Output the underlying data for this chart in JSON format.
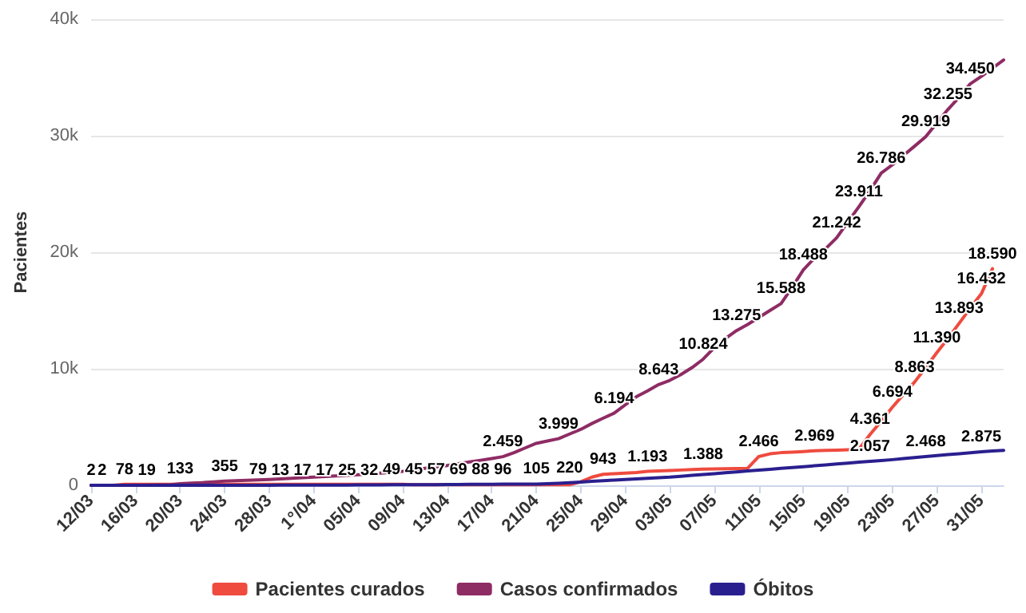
{
  "chart_data": {
    "type": "line",
    "ylabel": "Pacientes",
    "categories": [
      "12/03",
      null,
      null,
      null,
      "16/03",
      null,
      null,
      null,
      "20/03",
      null,
      null,
      null,
      "24/03",
      null,
      null,
      null,
      "28/03",
      null,
      null,
      null,
      "1°/04",
      null,
      null,
      null,
      "05/04",
      null,
      null,
      null,
      "09/04",
      null,
      null,
      null,
      "13/04",
      null,
      null,
      null,
      "17/04",
      null,
      null,
      null,
      "21/04",
      null,
      null,
      null,
      "25/04",
      null,
      null,
      null,
      "29/04",
      null,
      null,
      null,
      "03/05",
      null,
      null,
      null,
      "07/05",
      null,
      null,
      null,
      "11/05",
      null,
      null,
      null,
      "15/05",
      null,
      null,
      null,
      "19/05",
      null,
      null,
      null,
      "23/05",
      null,
      null,
      null,
      "27/05",
      null,
      null,
      null,
      "31/05",
      null,
      null
    ],
    "series": [
      {
        "name": "Pacientes curados",
        "color": "#ef4b3f",
        "values": [
          0,
          0,
          0,
          78,
          78,
          78,
          78,
          78,
          78,
          78,
          78,
          78,
          78,
          78,
          78,
          79,
          79,
          79,
          79,
          79,
          79,
          79,
          79,
          79,
          79,
          79,
          79,
          79,
          79,
          45,
          45,
          45,
          45,
          45,
          45,
          45,
          45,
          45,
          45,
          45,
          45,
          45,
          45,
          45,
          300,
          700,
          943,
          1000,
          1050,
          1100,
          1193,
          1230,
          1270,
          1310,
          1350,
          1388,
          1400,
          1420,
          1440,
          1460,
          2466,
          2700,
          2800,
          2850,
          2900,
          2969,
          3000,
          3020,
          3050,
          3100,
          4361,
          5500,
          6694,
          7800,
          8863,
          10100,
          11390,
          12600,
          13893,
          15200,
          16432,
          18590,
          null
        ],
        "value_labels": [
          null,
          null,
          null,
          "78",
          null,
          null,
          null,
          null,
          null,
          null,
          null,
          null,
          null,
          null,
          null,
          "79",
          null,
          null,
          null,
          null,
          null,
          null,
          null,
          null,
          null,
          null,
          null,
          null,
          null,
          "45",
          null,
          null,
          null,
          null,
          null,
          null,
          null,
          null,
          null,
          null,
          null,
          null,
          null,
          null,
          null,
          null,
          "943",
          null,
          null,
          null,
          "1.193",
          null,
          null,
          null,
          null,
          "1.388",
          null,
          null,
          null,
          null,
          "2.466",
          null,
          null,
          null,
          null,
          "2.969",
          null,
          null,
          null,
          null,
          "4.361",
          null,
          "6.694",
          null,
          "8.863",
          null,
          "11.390",
          null,
          "13.893",
          null,
          "16.432",
          "18.590",
          null
        ]
      },
      {
        "name": "Casos confirmados",
        "color": "#8e2c64",
        "values": [
          2,
          2,
          4,
          7,
          13,
          19,
          30,
          42,
          133,
          180,
          230,
          290,
          355,
          390,
          420,
          460,
          500,
          550,
          600,
          650,
          700,
          750,
          800,
          850,
          900,
          970,
          1050,
          1120,
          1200,
          1320,
          1450,
          1570,
          1700,
          1850,
          2000,
          2150,
          2300,
          2459,
          2800,
          3200,
          3600,
          3800,
          3999,
          4400,
          4800,
          5300,
          5750,
          6194,
          6900,
          7600,
          8100,
          8643,
          9000,
          9500,
          10100,
          10824,
          11800,
          12600,
          13275,
          13800,
          14400,
          15000,
          15588,
          17000,
          18488,
          19500,
          20300,
          21242,
          22600,
          23911,
          25300,
          26786,
          27500,
          28300,
          29100,
          29919,
          31100,
          32255,
          33300,
          34450,
          35100,
          35800,
          36500
        ],
        "value_labels": [
          "2",
          "2",
          null,
          null,
          null,
          "19",
          null,
          null,
          "133",
          null,
          null,
          null,
          "355",
          null,
          null,
          null,
          null,
          null,
          null,
          null,
          null,
          null,
          null,
          null,
          null,
          null,
          null,
          null,
          null,
          null,
          null,
          null,
          null,
          null,
          null,
          null,
          null,
          "2.459",
          null,
          null,
          null,
          null,
          "3.999",
          null,
          null,
          null,
          null,
          "6.194",
          null,
          null,
          null,
          "8.643",
          null,
          null,
          null,
          "10.824",
          null,
          null,
          "13.275",
          null,
          null,
          null,
          "15.588",
          null,
          "18.488",
          null,
          null,
          "21.242",
          null,
          "23.911",
          null,
          "26.786",
          null,
          null,
          null,
          "29.919",
          null,
          "32.255",
          null,
          "34.450",
          null,
          null,
          null
        ]
      },
      {
        "name": "Óbitos",
        "color": "#2a1f8f",
        "values": [
          0,
          0,
          0,
          0,
          0,
          0,
          0,
          0,
          0,
          0,
          0,
          0,
          0,
          0,
          0,
          0,
          0,
          13,
          15,
          17,
          17,
          17,
          21,
          25,
          28,
          32,
          40,
          49,
          53,
          55,
          56,
          57,
          63,
          69,
          78,
          88,
          92,
          96,
          98,
          100,
          105,
          130,
          175,
          220,
          280,
          340,
          400,
          450,
          500,
          550,
          600,
          650,
          700,
          775,
          850,
          925,
          1000,
          1075,
          1150,
          1225,
          1300,
          1375,
          1450,
          1525,
          1600,
          1675,
          1750,
          1825,
          1900,
          1980,
          2057,
          2130,
          2200,
          2290,
          2380,
          2468,
          2550,
          2630,
          2700,
          2790,
          2875,
          2940,
          3000
        ],
        "value_labels": [
          null,
          null,
          null,
          null,
          null,
          null,
          null,
          null,
          null,
          null,
          null,
          null,
          null,
          null,
          null,
          null,
          null,
          "13",
          null,
          "17",
          null,
          "17",
          null,
          "25",
          null,
          "32",
          null,
          "49",
          null,
          null,
          null,
          "57",
          null,
          "69",
          null,
          "88",
          null,
          "96",
          null,
          null,
          "105",
          null,
          null,
          "220",
          null,
          null,
          null,
          null,
          null,
          null,
          null,
          null,
          null,
          null,
          null,
          null,
          null,
          null,
          null,
          null,
          null,
          null,
          null,
          null,
          null,
          null,
          null,
          null,
          null,
          null,
          "2.057",
          null,
          null,
          null,
          null,
          "2.468",
          null,
          null,
          null,
          null,
          "2.875",
          null,
          null
        ]
      }
    ],
    "ylim": [
      0,
      40000
    ],
    "yticks": [
      {
        "value": 0,
        "label": "0"
      },
      {
        "value": 10000,
        "label": "10k"
      },
      {
        "value": 20000,
        "label": "20k"
      },
      {
        "value": 30000,
        "label": "30k"
      },
      {
        "value": 40000,
        "label": "40k"
      }
    ],
    "grid": "y",
    "legend": "bottom",
    "marker": "none",
    "line_style": "solid"
  }
}
